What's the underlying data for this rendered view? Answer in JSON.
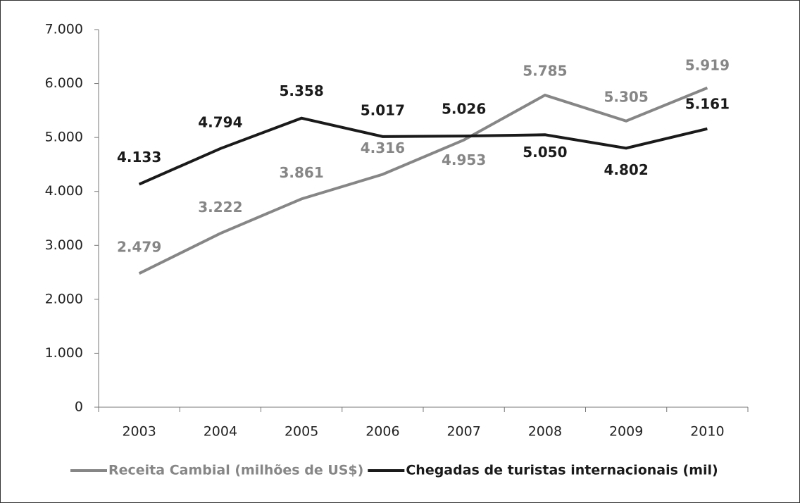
{
  "chart_data": {
    "type": "line",
    "categories": [
      "2003",
      "2004",
      "2005",
      "2006",
      "2007",
      "2008",
      "2009",
      "2010"
    ],
    "series": [
      {
        "name": "Receita Cambial (milhões de US$)",
        "color": "#868686",
        "values": [
          2479,
          3222,
          3861,
          4316,
          4953,
          5785,
          5305,
          5919
        ],
        "value_labels": [
          "2.479",
          "3.222",
          "3.861",
          "4.316",
          "4.953",
          "5.785",
          "5.305",
          "5.919"
        ]
      },
      {
        "name": "Chegadas de turistas internacionais (mil)",
        "color": "#1a1a1a",
        "values": [
          4133,
          4794,
          5358,
          5017,
          5026,
          5050,
          4802,
          5161
        ],
        "value_labels": [
          "4.133",
          "4.794",
          "5.358",
          "5.017",
          "5.026",
          "5.050",
          "4.802",
          "5.161"
        ]
      }
    ],
    "ylim": [
      0,
      7000
    ],
    "yticks": [
      0,
      {
        "value": 1000,
        "label": "1.000"
      },
      {
        "value": 2000,
        "label": "2.000"
      },
      {
        "value": 3000,
        "label": "3.000"
      },
      {
        "value": 4000,
        "label": "4.000"
      },
      {
        "value": 5000,
        "label": "5.000"
      },
      {
        "value": 6000,
        "label": "6.000"
      },
      {
        "value": 7000,
        "label": "7.000"
      }
    ],
    "grid": false,
    "legend": "bottom"
  }
}
